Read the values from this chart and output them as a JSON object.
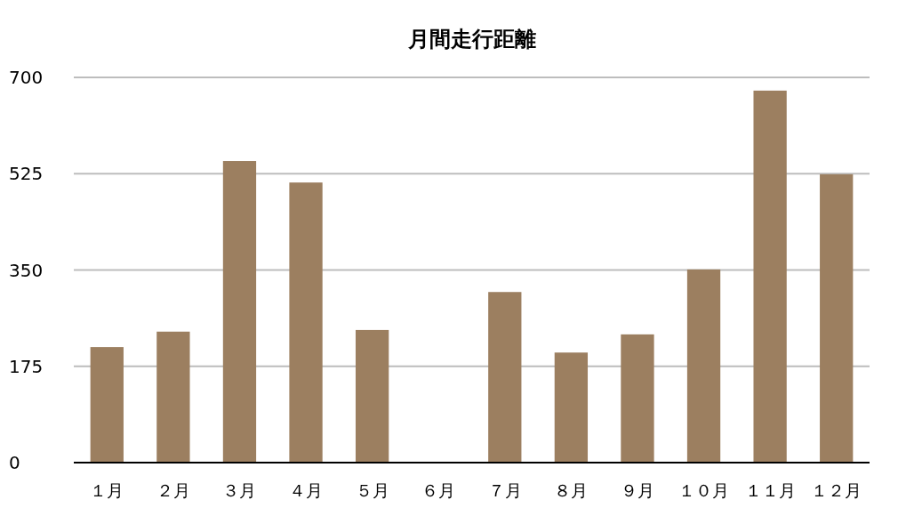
{
  "chart_data": {
    "type": "bar",
    "title": "月間走行距離",
    "categories": [
      "１月",
      "２月",
      "３月",
      "４月",
      "５月",
      "６月",
      "７月",
      "８月",
      "９月",
      "１０月",
      "１１月",
      "１２月"
    ],
    "values": [
      210,
      238,
      548,
      509,
      241,
      0,
      310,
      200,
      233,
      351,
      676,
      524
    ],
    "color": "#9c7f60",
    "ylim": [
      0,
      700
    ],
    "yticks": [
      0,
      175,
      350,
      525,
      700
    ],
    "grid": "y"
  }
}
